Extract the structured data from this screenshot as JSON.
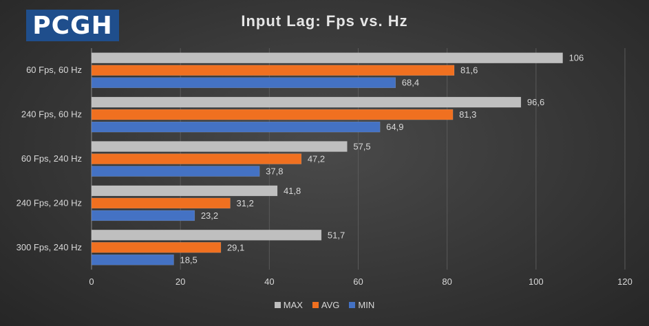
{
  "logo": {
    "text": "PCGH"
  },
  "chart_data": {
    "type": "bar",
    "orientation": "horizontal",
    "title": "Input Lag: Fps vs. Hz",
    "categories": [
      "60 Fps, 60 Hz",
      "240 Fps, 60 Hz",
      "60 Fps, 240 Hz",
      "240 Fps, 240 Hz",
      "300 Fps, 240 Hz"
    ],
    "series": [
      {
        "name": "MAX",
        "color": "#bfbfbf",
        "values": [
          106,
          96.6,
          57.5,
          41.8,
          51.7
        ],
        "labels": [
          "106",
          "96,6",
          "57,5",
          "41,8",
          "51,7"
        ]
      },
      {
        "name": "AVG",
        "color": "#f07020",
        "values": [
          81.6,
          81.3,
          47.2,
          31.2,
          29.1
        ],
        "labels": [
          "81,6",
          "81,3",
          "47,2",
          "31,2",
          "29,1"
        ]
      },
      {
        "name": "MIN",
        "color": "#4472c4",
        "values": [
          68.4,
          64.9,
          37.8,
          23.2,
          18.5
        ],
        "labels": [
          "68,4",
          "64,9",
          "37,8",
          "23,2",
          "18,5"
        ]
      }
    ],
    "xlim": [
      0,
      120
    ],
    "xticks": [
      "0",
      "20",
      "40",
      "60",
      "80",
      "100",
      "120"
    ],
    "grid": true,
    "legend_position": "bottom"
  }
}
